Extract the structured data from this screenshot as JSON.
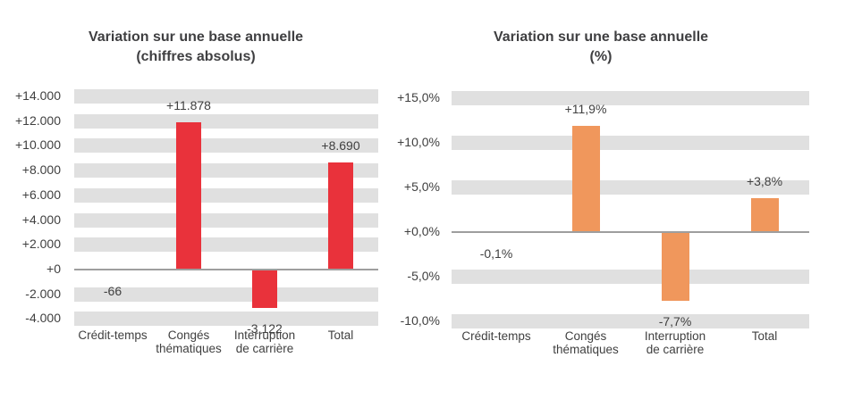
{
  "colors": {
    "background": "#ffffff",
    "grid_band": "#e0e0e0",
    "axis_line": "#9e9e9e",
    "label_text": "#404040",
    "title_text": "#3f3f41",
    "red_bar": "#e9323b",
    "orange_bar": "#f0975c"
  },
  "chart_data": [
    {
      "type": "bar",
      "title": "Variation sur une base annuelle (chiffres absolus)",
      "title_lines": [
        "Variation sur une base annuelle",
        "(chiffres absolus)"
      ],
      "categories": [
        "Crédit-temps",
        "Congés thématiques",
        "Interruption de carrière",
        "Total"
      ],
      "category_lines": [
        [
          "Crédit-temps"
        ],
        [
          "Congés",
          "thématiques"
        ],
        [
          "Interruption",
          "de carrière"
        ],
        [
          "Total"
        ]
      ],
      "values": [
        -66,
        11878,
        -3122,
        8690
      ],
      "data_labels": [
        "-66",
        "+11.878",
        "-3.122",
        "+8.690"
      ],
      "ylim": [
        -4000,
        14000
      ],
      "ytick_step": 2000,
      "ytick_labels": [
        "+14.000",
        "+12.000",
        "+10.000",
        "+8.000",
        "+6.000",
        "+4.000",
        "+2.000",
        "+0",
        "-2.000",
        "-4.000"
      ],
      "bar_color": "#e9323b",
      "grid": "horizontal-bands",
      "legend": "none"
    },
    {
      "type": "bar",
      "title": "Variation sur une base annuelle (%)",
      "title_lines": [
        "Variation sur une base annuelle",
        "(%)"
      ],
      "categories": [
        "Crédit-temps",
        "Congés thématiques",
        "Interruption de carrière",
        "Total"
      ],
      "category_lines": [
        [
          "Crédit-temps"
        ],
        [
          "Congés",
          "thématiques"
        ],
        [
          "Interruption",
          "de carrière"
        ],
        [
          "Total"
        ]
      ],
      "values": [
        -0.1,
        11.9,
        -7.7,
        3.8
      ],
      "data_labels": [
        "-0,1%",
        "+11,9%",
        "-7,7%",
        "+3,8%"
      ],
      "ylim": [
        -10,
        15
      ],
      "ytick_step": 5,
      "ytick_labels": [
        "+15,0%",
        "+10,0%",
        "+5,0%",
        "+0,0%",
        "-5,0%",
        "-10,0%"
      ],
      "bar_color": "#f0975c",
      "grid": "horizontal-bands",
      "legend": "none"
    }
  ]
}
